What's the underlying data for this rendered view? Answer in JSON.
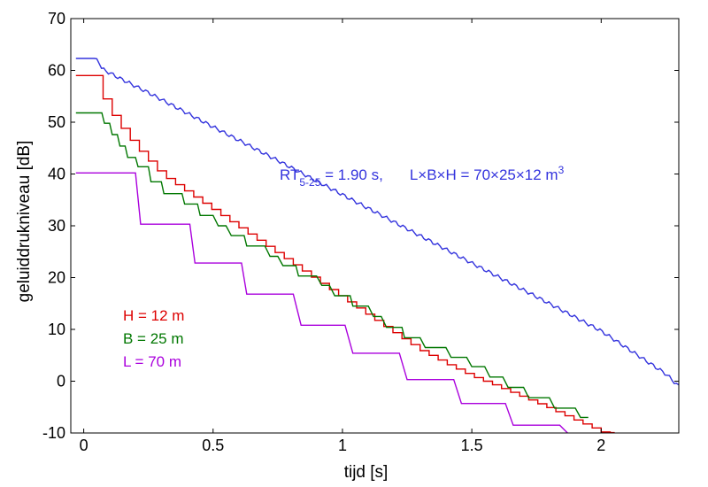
{
  "chart_data": {
    "type": "line",
    "xlabel": "tijd  [s]",
    "ylabel": "geluiddrukniveau  [dB]",
    "xlim": [
      -0.05,
      2.3
    ],
    "ylim": [
      -10,
      70
    ],
    "xticks": [
      0,
      0.5,
      1,
      1.5,
      2
    ],
    "xtick_labels": [
      "0",
      "0.5",
      "1",
      "1.5",
      "2"
    ],
    "yticks": [
      -10,
      0,
      10,
      20,
      30,
      40,
      50,
      60,
      70
    ],
    "ytick_labels": [
      "-10",
      "0",
      "10",
      "20",
      "30",
      "40",
      "50",
      "60",
      "70"
    ],
    "grid": false,
    "annotation": {
      "rt_main": "RT",
      "rt_sub": "5-25",
      "rt_rest": " = 1.90 s,",
      "dims_main": "L×B×H = 70×25×12 m",
      "dims_sup": "3",
      "color": "#3333dd"
    },
    "series": [
      {
        "name": "",
        "color": "#3333dd",
        "style": "decay",
        "x": [
          -0.03,
          0.05,
          0.07,
          0.15,
          0.25,
          0.5,
          0.75,
          1.0,
          1.25,
          1.5,
          1.75,
          2.0,
          2.25,
          2.3
        ],
        "y": [
          62.3,
          62.3,
          60.3,
          58.2,
          55.7,
          49.1,
          42.6,
          36.0,
          29.4,
          22.8,
          16.3,
          9.7,
          1.4,
          -1.0
        ]
      },
      {
        "name": "H = 12 m",
        "color": "#dd0000",
        "style": "steps",
        "step_dt": 0.035,
        "x": [
          -0.03,
          0.05,
          0.08,
          0.13,
          0.2,
          0.25,
          0.3,
          0.4,
          0.5,
          0.6,
          0.7,
          0.8,
          0.9,
          1.0,
          1.1,
          1.2,
          1.3,
          1.4,
          1.5,
          1.6,
          1.7,
          1.8,
          1.9,
          2.0,
          2.05
        ],
        "y": [
          59.0,
          59.0,
          53.6,
          49.8,
          45.2,
          42.5,
          39.8,
          36.4,
          33.0,
          29.6,
          26.2,
          22.8,
          19.4,
          16.0,
          12.6,
          9.2,
          5.9,
          3.3,
          0.9,
          -1.1,
          -3.2,
          -5.3,
          -7.6,
          -9.8,
          -10.0
        ]
      },
      {
        "name": "B = 25 m",
        "color": "#007700",
        "style": "steps",
        "x": [
          -0.03,
          0.07,
          0.08,
          0.1,
          0.11,
          0.13,
          0.14,
          0.16,
          0.17,
          0.2,
          0.21,
          0.25,
          0.26,
          0.3,
          0.31,
          0.38,
          0.39,
          0.44,
          0.45,
          0.5,
          0.52,
          0.55,
          0.57,
          0.62,
          0.63,
          0.7,
          0.72,
          0.75,
          0.77,
          0.82,
          0.83,
          0.9,
          0.92,
          0.95,
          0.97,
          1.03,
          1.04,
          1.1,
          1.12,
          1.15,
          1.17,
          1.23,
          1.24,
          1.3,
          1.32,
          1.4,
          1.42,
          1.48,
          1.5,
          1.55,
          1.57,
          1.62,
          1.64,
          1.7,
          1.72,
          1.8,
          1.82,
          1.9,
          1.92,
          1.95
        ],
        "y": [
          51.8,
          51.8,
          49.8,
          49.8,
          47.6,
          47.6,
          45.4,
          45.4,
          43.2,
          43.2,
          41.4,
          41.4,
          38.5,
          38.5,
          36.2,
          36.2,
          34.2,
          34.2,
          32.0,
          32.0,
          30.0,
          30.0,
          28.1,
          28.1,
          26.1,
          26.1,
          24.1,
          24.1,
          22.3,
          22.3,
          20.3,
          20.3,
          18.5,
          18.5,
          16.5,
          16.5,
          14.5,
          14.5,
          12.5,
          12.5,
          10.4,
          10.4,
          8.4,
          8.4,
          6.5,
          6.5,
          4.6,
          4.6,
          2.8,
          2.8,
          0.8,
          0.8,
          -1.2,
          -1.2,
          -3.2,
          -3.2,
          -5.2,
          -5.2,
          -7.0,
          -7.0
        ]
      },
      {
        "name": "L = 70 m",
        "color": "#aa00dd",
        "style": "steps",
        "x": [
          -0.03,
          0.2,
          0.22,
          0.41,
          0.43,
          0.61,
          0.63,
          0.81,
          0.84,
          1.01,
          1.04,
          1.22,
          1.25,
          1.43,
          1.46,
          1.63,
          1.66,
          1.84,
          1.87
        ],
        "y": [
          40.2,
          40.2,
          30.3,
          30.3,
          22.8,
          22.8,
          16.8,
          16.8,
          10.8,
          10.8,
          5.4,
          5.4,
          0.3,
          0.3,
          -4.3,
          -4.3,
          -8.5,
          -8.5,
          -10.0
        ]
      }
    ]
  }
}
